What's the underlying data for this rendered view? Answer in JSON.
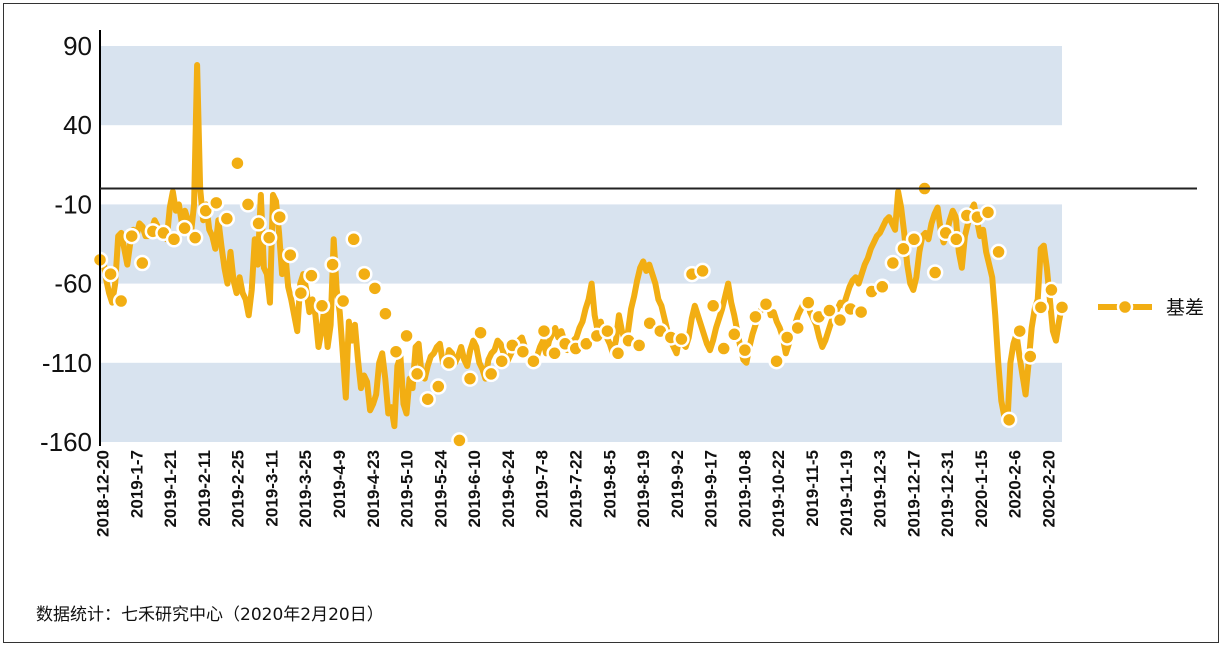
{
  "footnote": "数据统计：七禾研究中心（2020年2月20日）",
  "legend": {
    "label": "基差"
  },
  "colors": {
    "series": "#F2AE13",
    "band": "#D8E3EF",
    "axis": "#000000"
  },
  "chart_data": {
    "type": "line",
    "title": "",
    "xlabel": "",
    "ylabel": "",
    "ylim": [
      -160,
      90
    ],
    "yticks": [
      90,
      40,
      -10,
      -60,
      -110,
      -160
    ],
    "zero_line": 0,
    "grid": "alternating horizontal bands",
    "legend_position": "right",
    "categories": [
      "2018-12-20",
      "2019-1-7",
      "2019-1-21",
      "2019-2-11",
      "2019-2-25",
      "2019-3-11",
      "2019-3-25",
      "2019-4-9",
      "2019-4-23",
      "2019-5-10",
      "2019-5-24",
      "2019-6-10",
      "2019-6-24",
      "2019-7-8",
      "2019-7-22",
      "2019-8-5",
      "2019-8-19",
      "2019-9-2",
      "2019-9-17",
      "2019-10-8",
      "2019-10-22",
      "2019-11-5",
      "2019-11-19",
      "2019-12-3",
      "2019-12-17",
      "2019-12-31",
      "2020-1-15",
      "2020-2-6",
      "2020-2-20"
    ],
    "series": [
      {
        "name": "基差",
        "marker_values": [
          -45,
          -54,
          -71,
          -30,
          -47,
          -27,
          -28,
          -32,
          -25,
          -31,
          -14,
          -9,
          -19,
          16,
          -10,
          -22,
          -31,
          -18,
          -42,
          -66,
          -55,
          -74,
          -48,
          -71,
          -32,
          -54,
          -63,
          -79,
          -103,
          -93,
          -117,
          -133,
          -125,
          -110,
          -159,
          -120,
          -91,
          -117,
          -109,
          -99,
          -103,
          -109,
          -90,
          -104,
          -98,
          -101,
          -98,
          -93,
          -90,
          -104,
          -96,
          -99,
          -85,
          -90,
          -94,
          -95,
          -54,
          -52,
          -74,
          -101,
          -92,
          -102,
          -81,
          -73,
          -109,
          -94,
          -88,
          -72,
          -81,
          -77,
          -83,
          -76,
          -78,
          -65,
          -62,
          -47,
          -38,
          -32,
          0,
          -53,
          -28,
          -32,
          -17,
          -18,
          -15,
          -40,
          -146,
          -90,
          -106,
          -75,
          -64,
          -75
        ],
        "line_values": [
          -47,
          -44,
          -57,
          -66,
          -72,
          -60,
          -30,
          -28,
          -38,
          -48,
          -34,
          -26,
          -30,
          -22,
          -24,
          -30,
          -30,
          -26,
          -20,
          -24,
          -30,
          -28,
          -32,
          -12,
          -2,
          -14,
          -10,
          -22,
          -14,
          -20,
          -28,
          -10,
          78,
          0,
          -20,
          -10,
          -26,
          -30,
          -38,
          -20,
          -36,
          -50,
          -60,
          -40,
          -58,
          -66,
          -56,
          -66,
          -70,
          -80,
          -64,
          -32,
          -48,
          -4,
          -50,
          -54,
          -72,
          -4,
          -8,
          -28,
          -54,
          -40,
          -62,
          -70,
          -80,
          -90,
          -60,
          -54,
          -64,
          -78,
          -70,
          -80,
          -100,
          -90,
          -74,
          -100,
          -86,
          -32,
          -64,
          -78,
          -104,
          -132,
          -84,
          -96,
          -86,
          -108,
          -126,
          -118,
          -122,
          -140,
          -136,
          -130,
          -110,
          -104,
          -120,
          -142,
          -138,
          -150,
          -112,
          -106,
          -136,
          -142,
          -120,
          -126,
          -100,
          -98,
          -118,
          -120,
          -112,
          -106,
          -104,
          -100,
          -98,
          -110,
          -112,
          -102,
          -104,
          -110,
          -106,
          -100,
          -108,
          -112,
          -102,
          -96,
          -100,
          -110,
          -114,
          -120,
          -108,
          -104,
          -102,
          -96,
          -98,
          -104,
          -110,
          -106,
          -102,
          -100,
          -96,
          -94,
          -100,
          -104,
          -108,
          -112,
          -106,
          -100,
          -96,
          -104,
          -96,
          -92,
          -88,
          -94,
          -90,
          -96,
          -102,
          -98,
          -96,
          -94,
          -88,
          -84,
          -76,
          -70,
          -60,
          -80,
          -90,
          -84,
          -92,
          -94,
          -98,
          -104,
          -96,
          -80,
          -90,
          -96,
          -90,
          -76,
          -68,
          -58,
          -50,
          -46,
          -52,
          -48,
          -54,
          -60,
          -70,
          -74,
          -82,
          -90,
          -96,
          -100,
          -104,
          -92,
          -98,
          -100,
          -94,
          -82,
          -74,
          -80,
          -86,
          -92,
          -98,
          -102,
          -96,
          -88,
          -82,
          -76,
          -68,
          -60,
          -72,
          -80,
          -90,
          -100,
          -108,
          -110,
          -100,
          -92,
          -86,
          -80,
          -76,
          -72,
          -70,
          -80,
          -78,
          -84,
          -88,
          -94,
          -104,
          -98,
          -92,
          -86,
          -80,
          -76,
          -72,
          -70,
          -78,
          -82,
          -86,
          -94,
          -100,
          -96,
          -90,
          -84,
          -80,
          -76,
          -72,
          -74,
          -68,
          -62,
          -58,
          -56,
          -60,
          -54,
          -48,
          -44,
          -38,
          -34,
          -30,
          -28,
          -24,
          -20,
          -18,
          -22,
          -26,
          -2,
          -12,
          -28,
          -48,
          -60,
          -64,
          -56,
          -40,
          -30,
          -28,
          -32,
          -22,
          -16,
          -12,
          -26,
          -34,
          -28,
          -20,
          -14,
          -18,
          -40,
          -50,
          -30,
          -22,
          -14,
          -10,
          -20,
          -30,
          -26,
          -40,
          -48,
          -56,
          -80,
          -110,
          -134,
          -144,
          -148,
          -110,
          -98,
          -92,
          -106,
          -118,
          -130,
          -110,
          -88,
          -76,
          -70,
          -38,
          -36,
          -50,
          -70,
          -90,
          -96,
          -84,
          -74
        ]
      }
    ]
  }
}
